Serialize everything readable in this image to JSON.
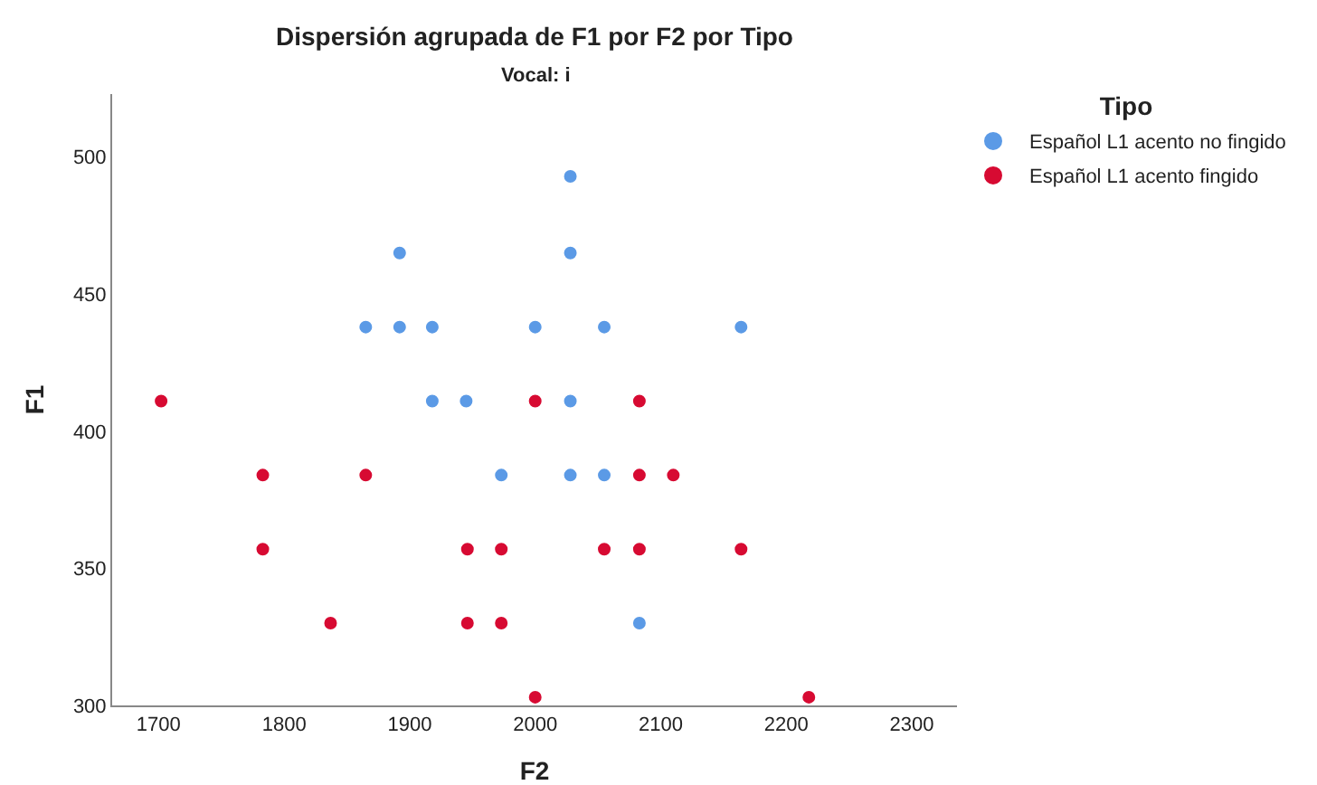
{
  "chart_data": {
    "type": "scatter",
    "title": "Dispersión agrupada de F1 por F2 por Tipo",
    "subtitle": "Vocal: i",
    "xlabel": "F2",
    "ylabel": "F1",
    "legend_title": "Tipo",
    "legend": "top right",
    "marker": "circle",
    "grid": false,
    "xlim": [
      1663,
      2336
    ],
    "xticks": [
      1700,
      1800,
      1900,
      2000,
      2100,
      2200,
      2300
    ],
    "ylim": [
      300,
      523
    ],
    "yticks": [
      300,
      350,
      400,
      450,
      500
    ],
    "series": [
      {
        "name": "Español L1 acento no fingido",
        "color": "#5b9ae6",
        "x": [
          1865,
          1892,
          1892,
          1918,
          1918,
          1945,
          1973,
          2000,
          2028,
          2028,
          2028,
          2028,
          2055,
          2055,
          2083,
          2164
        ],
        "values": [
          438,
          465,
          438,
          438,
          411,
          411,
          384,
          438,
          493,
          465,
          411,
          384,
          438,
          384,
          330,
          438
        ]
      },
      {
        "name": "Español L1 acento fingido",
        "color": "#d70a32",
        "x": [
          1702,
          1783,
          1783,
          1865,
          1837,
          1946,
          1946,
          1973,
          1973,
          2000,
          2000,
          2055,
          2083,
          2083,
          2083,
          2110,
          2164,
          2218
        ],
        "values": [
          411,
          384,
          357,
          384,
          330,
          357,
          330,
          357,
          330,
          411,
          303,
          357,
          411,
          384,
          357,
          384,
          357,
          303
        ]
      }
    ]
  }
}
